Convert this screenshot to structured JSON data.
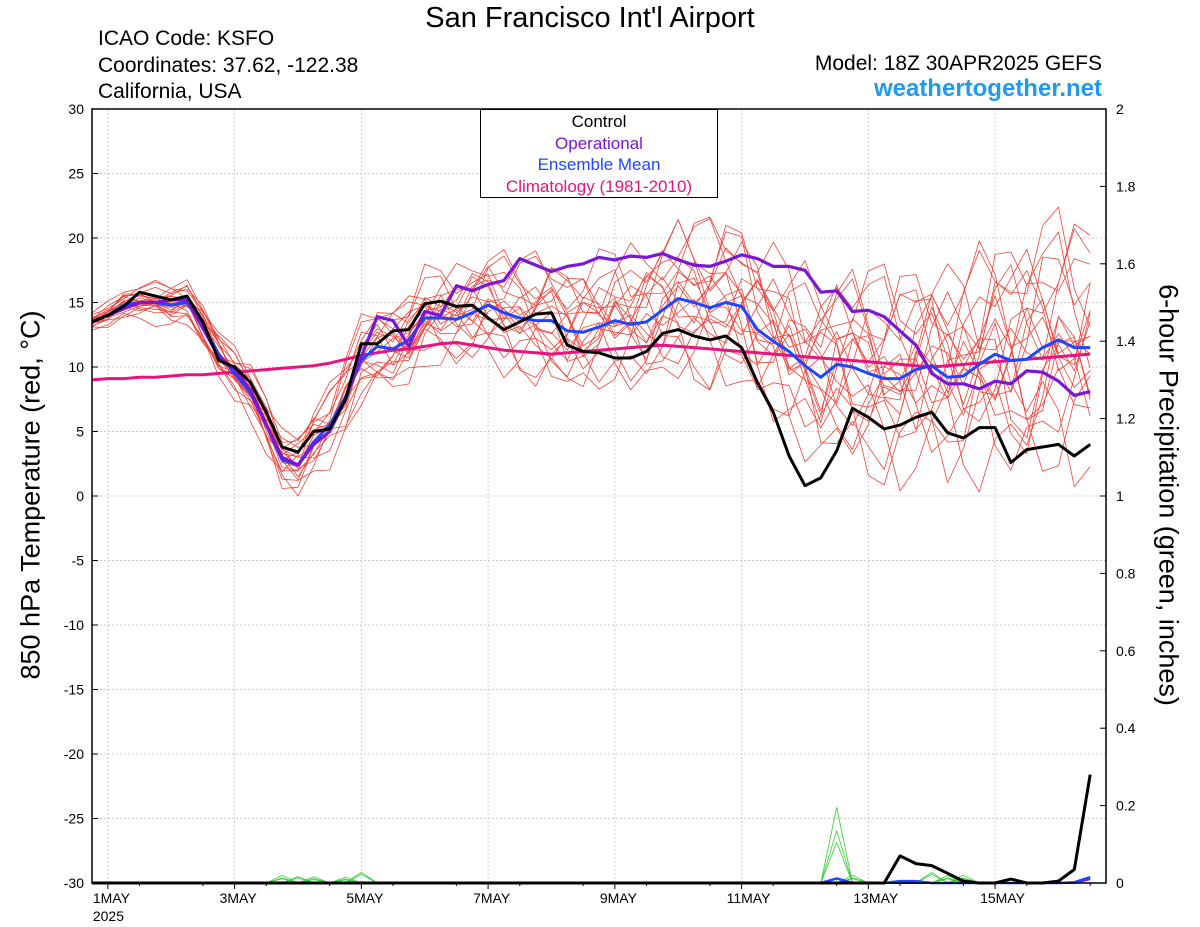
{
  "header": {
    "title": "San Francisco Int'l Airport",
    "icao": "ICAO Code: KSFO",
    "coordinates": "Coordinates: 37.62, -122.38",
    "region": "California, USA",
    "model": "Model: 18Z 30APR2025 GEFS",
    "website": "weathertogether.net"
  },
  "colors": {
    "control": "#000000",
    "operational": "#7a16d8",
    "ensemble_mean": "#1e46ff",
    "climatology": "#e8137f",
    "members": "#f0433a",
    "precip_members": "#33cc33",
    "website": "#1e9bf0"
  },
  "chart_data": {
    "type": "line",
    "ylabel": "850 hPa Temperature (red, °C)",
    "y2label": "6-hour Precipitation (green, inches)",
    "ylim": [
      -30,
      30
    ],
    "y2lim": [
      0,
      2
    ],
    "y_ticks": [
      30,
      25,
      20,
      15,
      10,
      5,
      0,
      -5,
      -10,
      -15,
      -20,
      -25,
      -30
    ],
    "y2_ticks": [
      "2",
      "1.8",
      "1.6",
      "1.4",
      "1.2",
      "1",
      "0.8",
      "0.6",
      "0.4",
      "0.2",
      "0"
    ],
    "xlim_day": [
      0.75,
      16.75
    ],
    "x_ticks": [
      {
        "day": 1,
        "label": "1MAY",
        "sub": "2025"
      },
      {
        "day": 3,
        "label": "3MAY",
        "sub": ""
      },
      {
        "day": 5,
        "label": "5MAY",
        "sub": ""
      },
      {
        "day": 7,
        "label": "7MAY",
        "sub": ""
      },
      {
        "day": 9,
        "label": "9MAY",
        "sub": ""
      },
      {
        "day": 11,
        "label": "11MAY",
        "sub": ""
      },
      {
        "day": 13,
        "label": "13MAY",
        "sub": ""
      },
      {
        "day": 15,
        "label": "15MAY",
        "sub": ""
      }
    ],
    "grid": true,
    "legend": {
      "position": "top-center",
      "entries": [
        "Control",
        "Operational",
        "Ensemble Mean",
        "Climatology (1981-2010)"
      ]
    },
    "time_step_hours": 6,
    "start_day": 0.75,
    "series": [
      {
        "name": "Control",
        "values": [
          13.5,
          14,
          14.7,
          15.8,
          15.5,
          15.2,
          15.5,
          13.5,
          10.5,
          10,
          8.8,
          6.5,
          3.8,
          3.4,
          5,
          5.2,
          7.5,
          11.8,
          11.8,
          12.8,
          12.9,
          14.9,
          15.1,
          14.7,
          14.8,
          13.8,
          12.9,
          13.5,
          14.1,
          14.2,
          11.7,
          11.2,
          11.1,
          10.7,
          10.7,
          11.2,
          12.6,
          12.9,
          12.4,
          12.1,
          12.4,
          11.5,
          8.8,
          6.5,
          3.1,
          0.8,
          1.4,
          3.5,
          6.8,
          6.1,
          5.2,
          5.5,
          6.1,
          6.5,
          4.9,
          4.5,
          5.3,
          5.3,
          2.6,
          3.6,
          3.8,
          4,
          3.1,
          4
        ]
      },
      {
        "name": "Operational",
        "values": [
          13.5,
          14,
          14.5,
          15,
          15,
          15.2,
          15.2,
          13,
          10.8,
          9.8,
          8.2,
          5.5,
          3,
          2.4,
          4,
          5,
          7.5,
          10.8,
          13.9,
          13.6,
          11.6,
          14.3,
          14,
          16.3,
          15.9,
          16.4,
          16.7,
          18.4,
          17.9,
          17.4,
          17.8,
          18,
          18.5,
          18.3,
          18.6,
          18.5,
          18.8,
          18.3,
          17.9,
          17.8,
          18.2,
          18.7,
          18.4,
          17.8,
          17.8,
          17.5,
          15.8,
          15.9,
          14.3,
          14.4,
          13.9,
          12.8,
          11.7,
          9.5,
          8.7,
          8.7,
          8.3,
          8.9,
          8.7,
          9.7,
          9.6,
          8.9,
          7.8,
          8.1
        ]
      },
      {
        "name": "Ensemble Mean",
        "values": [
          13.5,
          14,
          14.8,
          15,
          15,
          14.8,
          15,
          13.2,
          11,
          9.5,
          8,
          5.5,
          2.8,
          2.4,
          4.2,
          5.5,
          7.7,
          10.5,
          11.6,
          11.4,
          12.1,
          13.8,
          13.8,
          13.7,
          14.2,
          14.8,
          14.2,
          13.8,
          13.6,
          13.6,
          12.8,
          12.7,
          13.1,
          13.6,
          13.3,
          13.5,
          14.4,
          15.3,
          15,
          14.6,
          15,
          14.7,
          12.9,
          12,
          11.2,
          10.1,
          9.2,
          10.2,
          10,
          9.5,
          9.1,
          9.1,
          9.8,
          10.1,
          9.2,
          9.3,
          10.2,
          11,
          10.5,
          10.6,
          11.5,
          12.1,
          11.5,
          11.5
        ]
      },
      {
        "name": "Climatology (1981-2010)",
        "values": [
          9,
          9.1,
          9.1,
          9.2,
          9.2,
          9.3,
          9.4,
          9.4,
          9.5,
          9.6,
          9.7,
          9.8,
          9.9,
          10,
          10.1,
          10.3,
          10.6,
          10.9,
          11.1,
          11.3,
          11.4,
          11.6,
          11.8,
          11.9,
          11.7,
          11.5,
          11.3,
          11.2,
          11.1,
          11,
          11.1,
          11.2,
          11.3,
          11.4,
          11.5,
          11.6,
          11.7,
          11.6,
          11.5,
          11.4,
          11.3,
          11.2,
          11.1,
          11,
          10.9,
          10.8,
          10.7,
          10.6,
          10.5,
          10.4,
          10.3,
          10.2,
          10.1,
          10,
          10.1,
          10.2,
          10.3,
          10.4,
          10.5,
          10.6,
          10.7,
          10.8,
          10.9,
          11
        ]
      }
    ],
    "member_count": 20,
    "precip_series": [
      {
        "name": "Control",
        "values": [
          0,
          0,
          0,
          0,
          0,
          0,
          0,
          0,
          0,
          0,
          0,
          0,
          0,
          0,
          0,
          0,
          0,
          0,
          0,
          0,
          0,
          0,
          0,
          0,
          0,
          0,
          0,
          0,
          0,
          0,
          0,
          0,
          0,
          0,
          0,
          0,
          0,
          0,
          0,
          0,
          0,
          0,
          0,
          0,
          0,
          0,
          0,
          0,
          0,
          0,
          0,
          0.07,
          0.05,
          0.045,
          0.025,
          0.005,
          0,
          0,
          0.01,
          0,
          0,
          0.005,
          0.035,
          0.28
        ]
      },
      {
        "name": "Operational",
        "values": [
          0,
          0,
          0,
          0,
          0,
          0,
          0,
          0,
          0,
          0,
          0,
          0,
          0,
          0,
          0,
          0,
          0,
          0,
          0,
          0,
          0,
          0,
          0,
          0,
          0,
          0,
          0,
          0,
          0,
          0,
          0,
          0,
          0,
          0,
          0,
          0,
          0,
          0,
          0,
          0,
          0,
          0,
          0,
          0,
          0,
          0,
          0,
          0,
          0,
          0,
          0,
          0,
          0,
          0,
          0,
          0,
          0,
          0,
          0,
          0,
          0,
          0,
          0,
          0.01
        ]
      },
      {
        "name": "Ensemble Mean",
        "values": [
          0,
          0,
          0,
          0,
          0,
          0,
          0,
          0,
          0,
          0,
          0,
          0,
          0,
          0,
          0,
          0,
          0,
          0,
          0,
          0,
          0,
          0,
          0,
          0,
          0,
          0,
          0,
          0,
          0,
          0,
          0,
          0,
          0,
          0,
          0,
          0,
          0,
          0,
          0,
          0,
          0,
          0,
          0,
          0,
          0,
          0,
          0,
          0.012,
          0,
          0,
          0,
          0.005,
          0.005,
          0,
          0,
          0,
          0,
          0,
          0,
          0,
          0,
          0,
          0.002,
          0.015
        ]
      }
    ]
  }
}
